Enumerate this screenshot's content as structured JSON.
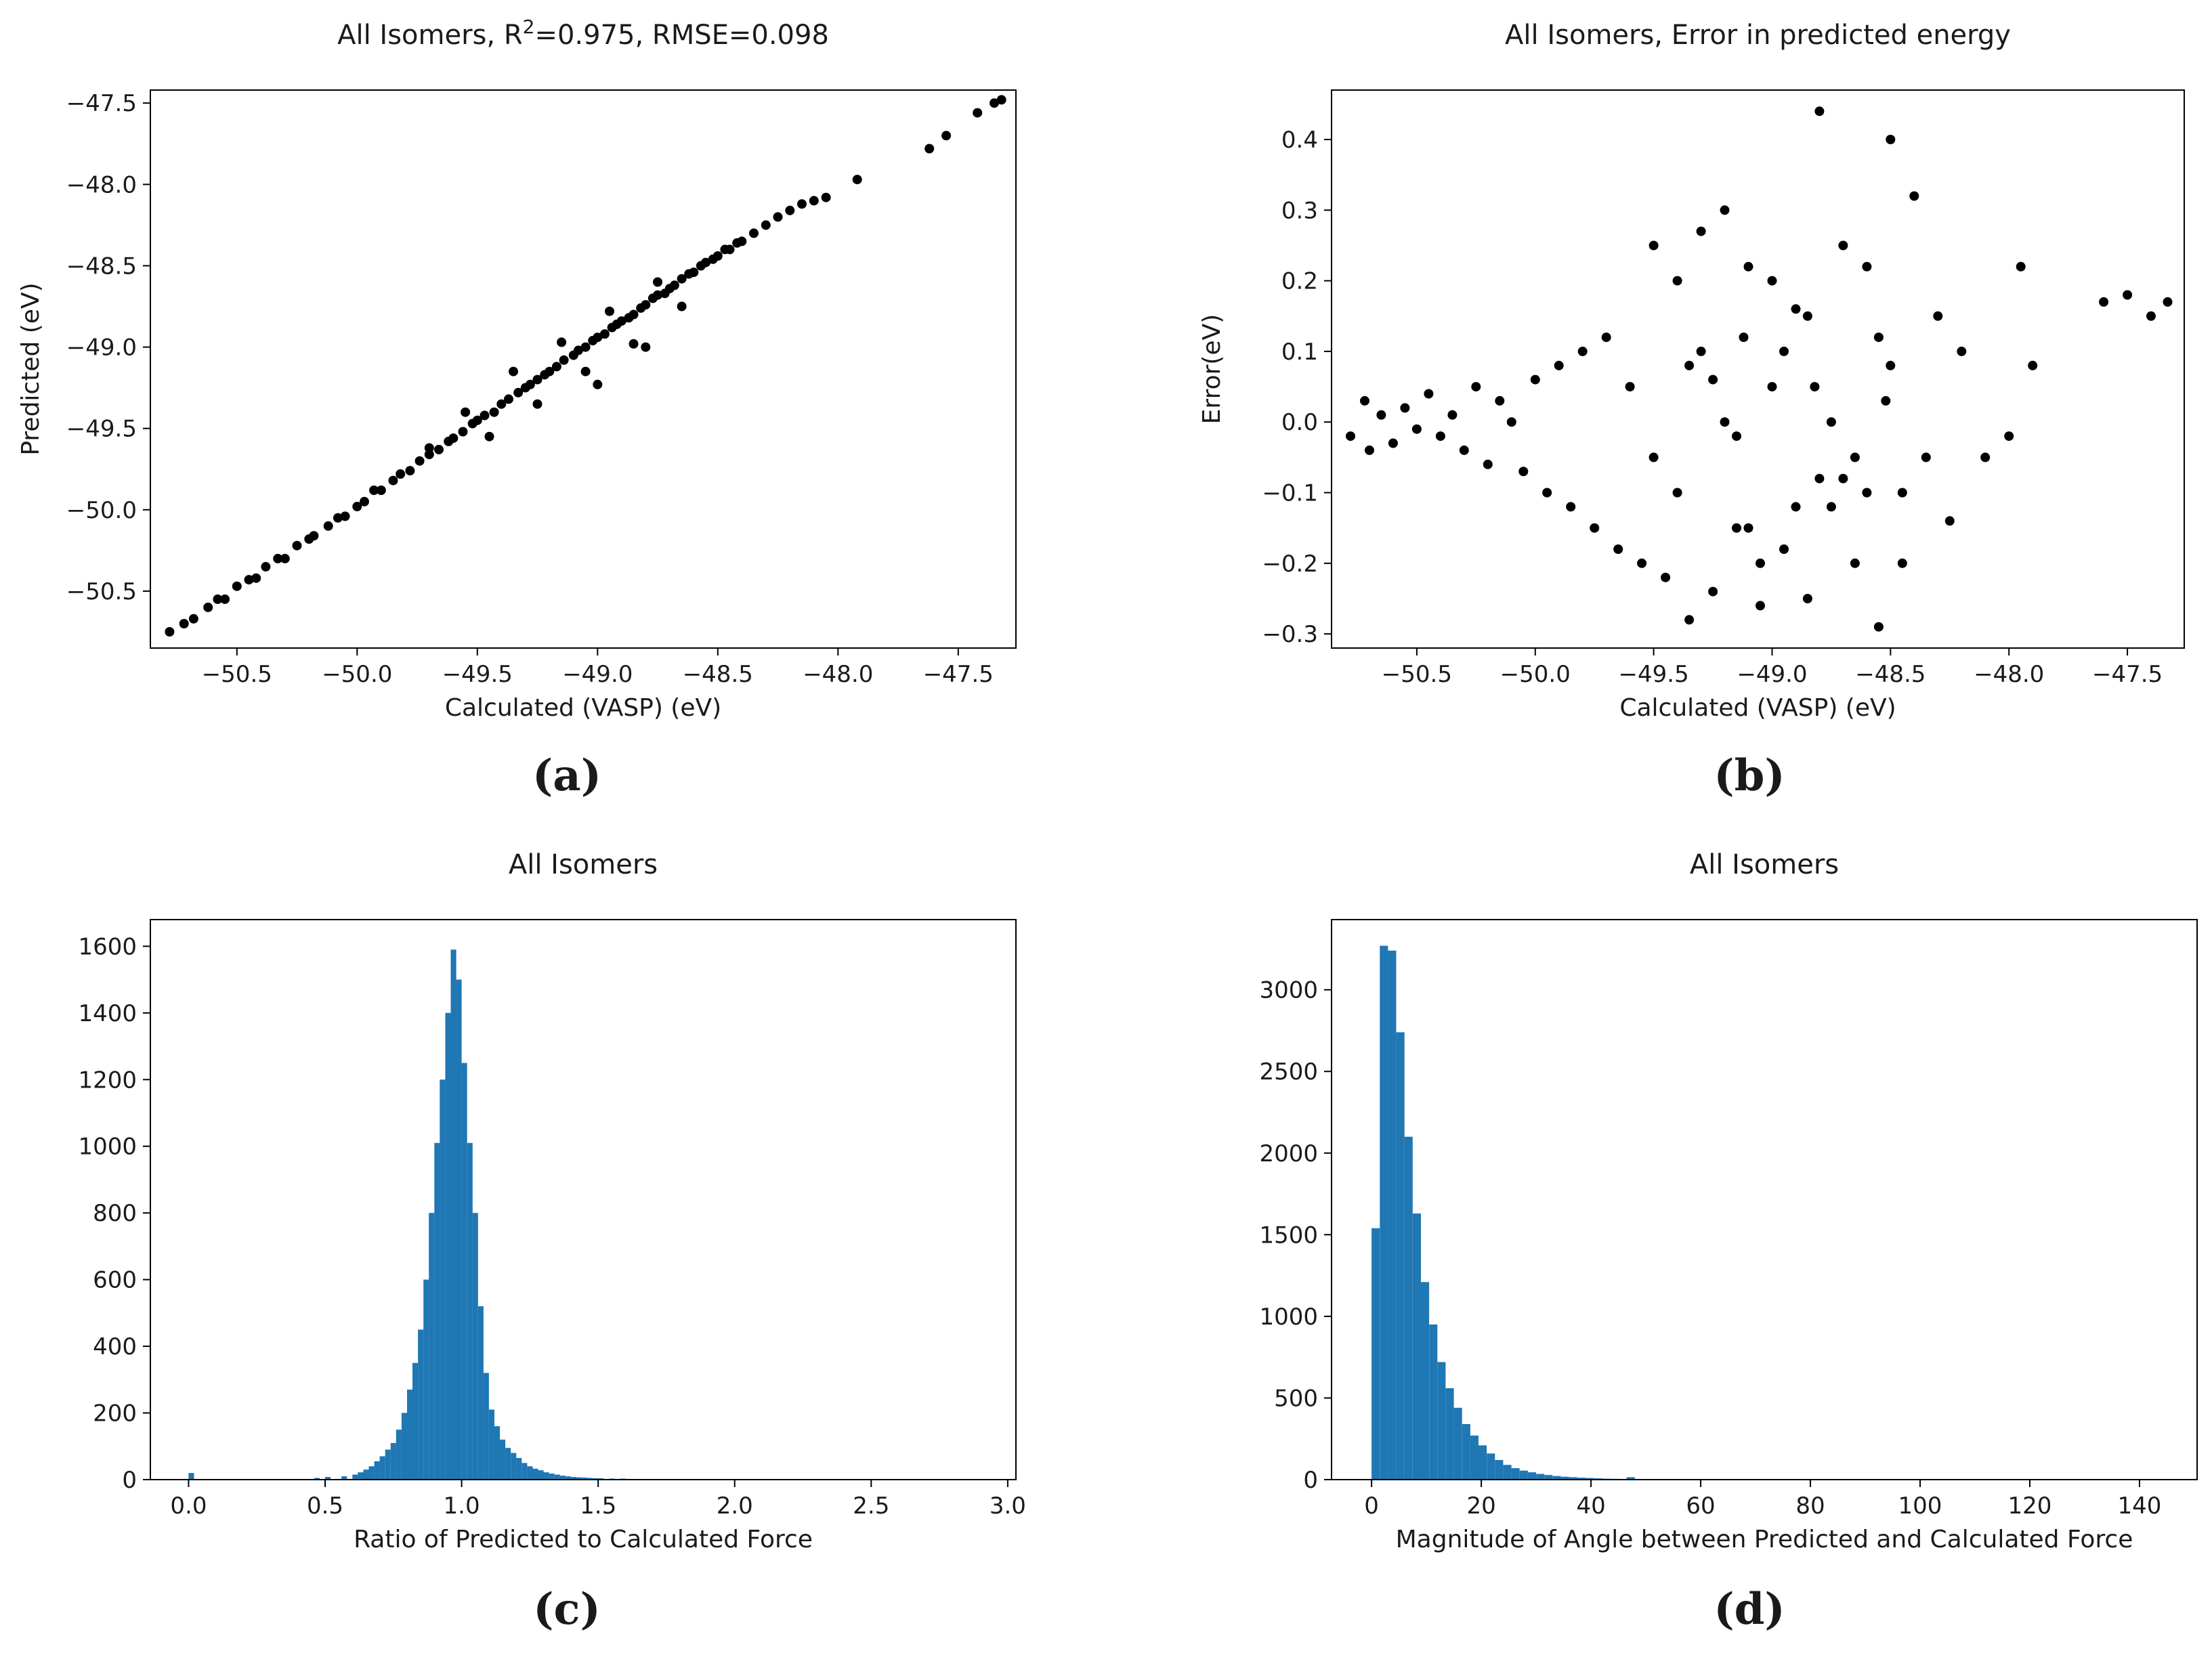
{
  "chart_data": [
    {
      "type": "scatter",
      "panel_label": "(a)",
      "title": {
        "prefix": "All Isomers, R",
        "sup": "2",
        "suffix": "=0.975, RMSE=0.098"
      },
      "xlabel": "Calculated (VASP) (eV)",
      "ylabel": "Predicted (eV)",
      "xlim": [
        -50.86,
        -47.26
      ],
      "ylim": [
        -50.85,
        -47.42
      ],
      "xticks": [
        -50.5,
        -50.0,
        -49.5,
        -49.0,
        -48.5,
        -48.0,
        -47.5
      ],
      "xtick_labels": [
        "−50.5",
        "−50.0",
        "−49.5",
        "−49.0",
        "−48.5",
        "−48.0",
        "−47.5"
      ],
      "yticks": [
        -50.5,
        -50.0,
        -49.5,
        -49.0,
        -48.5,
        -48.0,
        -47.5
      ],
      "ytick_labels": [
        "−50.5",
        "−50.0",
        "−49.5",
        "−49.0",
        "−48.5",
        "−48.0",
        "−47.5"
      ],
      "marker_color": "#000000",
      "x": [
        -50.78,
        -50.72,
        -50.68,
        -50.62,
        -50.58,
        -50.55,
        -50.5,
        -50.45,
        -50.42,
        -50.38,
        -50.33,
        -50.3,
        -50.25,
        -50.2,
        -50.18,
        -50.12,
        -50.08,
        -50.05,
        -50.0,
        -49.97,
        -49.93,
        -49.9,
        -49.85,
        -49.82,
        -49.78,
        -49.74,
        -49.7,
        -49.66,
        -49.62,
        -49.6,
        -49.56,
        -49.52,
        -49.5,
        -49.47,
        -49.43,
        -49.4,
        -49.37,
        -49.33,
        -49.3,
        -49.28,
        -49.25,
        -49.22,
        -49.2,
        -49.17,
        -49.14,
        -49.1,
        -49.08,
        -49.05,
        -49.02,
        -49.0,
        -48.97,
        -48.94,
        -48.92,
        -48.9,
        -48.87,
        -48.85,
        -48.82,
        -48.8,
        -48.77,
        -48.75,
        -48.72,
        -48.7,
        -48.68,
        -48.65,
        -48.62,
        -48.6,
        -48.57,
        -48.55,
        -48.52,
        -48.5,
        -48.47,
        -48.45,
        -48.42,
        -48.4,
        -48.35,
        -48.3,
        -48.25,
        -48.2,
        -48.15,
        -48.1,
        -48.05,
        -47.92,
        -47.62,
        -47.55,
        -47.42,
        -47.35,
        -47.32,
        -49.55,
        -49.35,
        -49.15,
        -48.95,
        -48.75,
        -49.45,
        -49.25,
        -49.05,
        -48.85,
        -48.65,
        -49.7,
        -49.0,
        -48.8
      ],
      "y": [
        -50.75,
        -50.7,
        -50.67,
        -50.6,
        -50.55,
        -50.55,
        -50.47,
        -50.43,
        -50.42,
        -50.35,
        -50.3,
        -50.3,
        -50.22,
        -50.18,
        -50.16,
        -50.1,
        -50.05,
        -50.04,
        -49.98,
        -49.95,
        -49.88,
        -49.88,
        -49.82,
        -49.78,
        -49.76,
        -49.7,
        -49.66,
        -49.63,
        -49.58,
        -49.56,
        -49.52,
        -49.47,
        -49.45,
        -49.42,
        -49.4,
        -49.35,
        -49.32,
        -49.28,
        -49.25,
        -49.23,
        -49.2,
        -49.17,
        -49.15,
        -49.12,
        -49.08,
        -49.05,
        -49.02,
        -49.0,
        -48.96,
        -48.94,
        -48.92,
        -48.88,
        -48.86,
        -48.84,
        -48.82,
        -48.8,
        -48.76,
        -48.74,
        -48.7,
        -48.68,
        -48.67,
        -48.64,
        -48.62,
        -48.58,
        -48.55,
        -48.54,
        -48.5,
        -48.48,
        -48.46,
        -48.44,
        -48.4,
        -48.4,
        -48.36,
        -48.35,
        -48.3,
        -48.25,
        -48.2,
        -48.16,
        -48.12,
        -48.1,
        -48.08,
        -47.97,
        -47.78,
        -47.7,
        -47.56,
        -47.5,
        -47.48,
        -49.4,
        -49.15,
        -48.97,
        -48.78,
        -48.6,
        -49.55,
        -49.35,
        -49.15,
        -48.98,
        -48.75,
        -49.62,
        -49.23,
        -49.0
      ]
    },
    {
      "type": "scatter",
      "panel_label": "(b)",
      "title": "All Isomers, Error in predicted energy",
      "xlabel": "Calculated (VASP) (eV)",
      "ylabel": "Error(eV)",
      "xlim": [
        -50.86,
        -47.26
      ],
      "ylim": [
        -0.32,
        0.47
      ],
      "xticks": [
        -50.5,
        -50.0,
        -49.5,
        -49.0,
        -48.5,
        -48.0,
        -47.5
      ],
      "xtick_labels": [
        "−50.5",
        "−50.0",
        "−49.5",
        "−49.0",
        "−48.5",
        "−48.0",
        "−47.5"
      ],
      "yticks": [
        -0.3,
        -0.2,
        -0.1,
        0.0,
        0.1,
        0.2,
        0.3,
        0.4
      ],
      "ytick_labels": [
        "−0.3",
        "−0.2",
        "−0.1",
        "0.0",
        "0.1",
        "0.2",
        "0.3",
        "0.4"
      ],
      "marker_color": "#000000",
      "x": [
        -50.78,
        -50.72,
        -50.7,
        -50.65,
        -50.6,
        -50.55,
        -50.5,
        -50.45,
        -50.4,
        -50.35,
        -50.3,
        -50.25,
        -50.2,
        -50.15,
        -50.1,
        -50.05,
        -50.0,
        -49.95,
        -49.9,
        -49.85,
        -49.8,
        -49.75,
        -49.7,
        -49.65,
        -49.6,
        -49.55,
        -49.5,
        -49.45,
        -49.4,
        -49.35,
        -49.3,
        -49.25,
        -49.2,
        -49.15,
        -49.1,
        -49.05,
        -49.0,
        -48.95,
        -48.9,
        -48.85,
        -48.8,
        -48.75,
        -48.7,
        -48.65,
        -48.6,
        -48.55,
        -48.5,
        -48.45,
        -48.4,
        -48.35,
        -48.3,
        -48.25,
        -48.2,
        -48.1,
        -48.0,
        -47.95,
        -47.9,
        -47.6,
        -47.5,
        -47.4,
        -47.33,
        -49.3,
        -49.12,
        -48.82,
        -48.5,
        -48.45,
        -49.4,
        -49.2,
        -49.0,
        -48.9,
        -48.7,
        -49.5,
        -49.1,
        -48.85,
        -48.6,
        -48.55,
        -49.35,
        -49.05,
        -48.95,
        -48.75,
        -48.65,
        -49.25,
        -49.15,
        -48.8,
        -48.52
      ],
      "y": [
        -0.02,
        0.03,
        -0.04,
        0.01,
        -0.03,
        0.02,
        -0.01,
        0.04,
        -0.02,
        0.01,
        -0.04,
        0.05,
        -0.06,
        0.03,
        0.0,
        -0.07,
        0.06,
        -0.1,
        0.08,
        -0.12,
        0.1,
        -0.15,
        0.12,
        -0.18,
        0.05,
        -0.2,
        0.25,
        -0.22,
        0.2,
        -0.28,
        0.27,
        -0.24,
        0.3,
        -0.15,
        0.22,
        -0.26,
        0.2,
        -0.18,
        0.16,
        -0.25,
        0.44,
        -0.12,
        0.25,
        -0.2,
        0.22,
        -0.29,
        0.4,
        -0.1,
        0.32,
        -0.05,
        0.15,
        -0.14,
        0.1,
        -0.05,
        -0.02,
        0.22,
        0.08,
        0.17,
        0.18,
        0.15,
        0.17,
        0.1,
        0.12,
        0.05,
        0.08,
        -0.2,
        -0.1,
        0.0,
        0.05,
        -0.12,
        -0.08,
        -0.05,
        -0.15,
        0.15,
        -0.1,
        0.12,
        0.08,
        -0.2,
        0.1,
        0.0,
        -0.05,
        0.06,
        -0.02,
        -0.08,
        0.03
      ]
    },
    {
      "type": "bar",
      "panel_label": "(c)",
      "title": "All Isomers",
      "xlabel": "Ratio of Predicted to Calculated Force",
      "ylabel": "",
      "xlim": [
        -0.14,
        3.03
      ],
      "ylim": [
        0,
        1680
      ],
      "xticks": [
        0.0,
        0.5,
        1.0,
        1.5,
        2.0,
        2.5,
        3.0
      ],
      "xtick_labels": [
        "0.0",
        "0.5",
        "1.0",
        "1.5",
        "2.0",
        "2.5",
        "3.0"
      ],
      "yticks": [
        0,
        200,
        400,
        600,
        800,
        1000,
        1200,
        1400,
        1600
      ],
      "ytick_labels": [
        "0",
        "200",
        "400",
        "600",
        "800",
        "1000",
        "1200",
        "1400",
        "1600"
      ],
      "bar_color": "#1f77b4",
      "bin_width": 0.02,
      "bin_starts": [
        0.0,
        0.46,
        0.5,
        0.56,
        0.6,
        0.62,
        0.64,
        0.66,
        0.68,
        0.7,
        0.72,
        0.74,
        0.76,
        0.78,
        0.8,
        0.82,
        0.84,
        0.86,
        0.88,
        0.9,
        0.92,
        0.94,
        0.96,
        0.98,
        1.0,
        1.02,
        1.04,
        1.06,
        1.08,
        1.1,
        1.12,
        1.14,
        1.16,
        1.18,
        1.2,
        1.22,
        1.24,
        1.26,
        1.28,
        1.3,
        1.32,
        1.34,
        1.36,
        1.38,
        1.4,
        1.42,
        1.44,
        1.46,
        1.48,
        1.5,
        1.54,
        1.58,
        1.62,
        1.66,
        1.7,
        1.76,
        1.82
      ],
      "values": [
        20,
        5,
        8,
        10,
        15,
        22,
        30,
        40,
        55,
        70,
        90,
        110,
        150,
        200,
        270,
        350,
        450,
        600,
        800,
        1010,
        1200,
        1400,
        1590,
        1500,
        1250,
        1010,
        800,
        520,
        320,
        210,
        160,
        120,
        95,
        80,
        65,
        50,
        40,
        33,
        28,
        22,
        18,
        15,
        12,
        10,
        8,
        7,
        6,
        5,
        4,
        4,
        3,
        3,
        2,
        2,
        2,
        2,
        1
      ]
    },
    {
      "type": "bar",
      "panel_label": "(d)",
      "title": "All Isomers",
      "xlabel": "Magnitude of Angle between Predicted and Calculated Force",
      "ylabel": "",
      "xlim": [
        -7.3,
        150.5
      ],
      "ylim": [
        0,
        3430
      ],
      "xticks": [
        0,
        20,
        40,
        60,
        80,
        100,
        120,
        140
      ],
      "xtick_labels": [
        "0",
        "20",
        "40",
        "60",
        "80",
        "100",
        "120",
        "140"
      ],
      "yticks": [
        0,
        500,
        1000,
        1500,
        2000,
        2500,
        3000
      ],
      "ytick_labels": [
        "0",
        "500",
        "1000",
        "1500",
        "2000",
        "2500",
        "3000"
      ],
      "bar_color": "#1f77b4",
      "bin_width": 1.5,
      "bin_starts": [
        0,
        1.5,
        3,
        4.5,
        6,
        7.5,
        9,
        10.5,
        12,
        13.5,
        15,
        16.5,
        18,
        19.5,
        21,
        22.5,
        24,
        25.5,
        27,
        28.5,
        30,
        31.5,
        33,
        34.5,
        36,
        37.5,
        39,
        40.5,
        42,
        43.5,
        46.5
      ],
      "values": [
        1540,
        3270,
        3240,
        2740,
        2100,
        1630,
        1210,
        950,
        720,
        560,
        440,
        340,
        270,
        210,
        160,
        120,
        90,
        70,
        55,
        45,
        35,
        28,
        22,
        18,
        15,
        12,
        10,
        8,
        6,
        5,
        15
      ]
    }
  ]
}
